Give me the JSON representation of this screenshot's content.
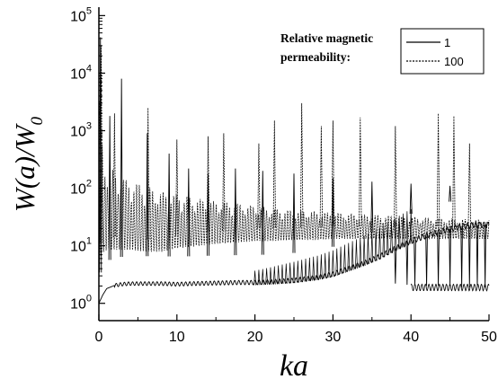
{
  "chart_data": {
    "type": "line",
    "xlabel": "ka",
    "ylabel": "W(a)/W",
    "ylabel_subscript": "0",
    "xlim": [
      0,
      50
    ],
    "ylim": [
      0.5,
      140000
    ],
    "yscale": "log",
    "grid": false,
    "legend_placement": "top-right",
    "legend_title_line1": "Relative magnetic",
    "legend_title_line2": "permeability:",
    "x_ticks": [
      "0",
      "10",
      "20",
      "30",
      "40",
      "50"
    ],
    "y_ticks": [
      {
        "base": "10",
        "exp": "0",
        "value": 1
      },
      {
        "base": "10",
        "exp": "1",
        "value": 10
      },
      {
        "base": "10",
        "exp": "2",
        "value": 100
      },
      {
        "base": "10",
        "exp": "3",
        "value": 1000
      },
      {
        "base": "10",
        "exp": "4",
        "value": 10000
      },
      {
        "base": "10",
        "exp": "5",
        "value": 100000
      }
    ],
    "series": [
      {
        "name": "1",
        "style": "solid",
        "color": "#000000",
        "x": [
          0,
          0.5,
          1,
          2,
          3,
          4,
          6,
          8,
          10,
          12,
          15,
          18,
          20,
          22,
          25,
          28,
          30,
          32,
          34,
          36,
          38,
          40,
          42,
          44,
          46,
          48,
          50
        ],
        "y": [
          1.0,
          1.4,
          1.8,
          2.05,
          2.15,
          2.2,
          2.2,
          2.2,
          2.15,
          2.2,
          2.25,
          2.3,
          2.3,
          2.35,
          2.5,
          2.8,
          3.2,
          4.0,
          5.0,
          6.5,
          9.0,
          12.0,
          15.0,
          18.0,
          21.0,
          23.0,
          23.0
        ],
        "peaks": [
          {
            "x": 0.2,
            "y": 42000
          },
          {
            "x": 1.4,
            "y": 1800
          },
          {
            "x": 2.9,
            "y": 8000
          },
          {
            "x": 6.2,
            "y": 900
          },
          {
            "x": 9.0,
            "y": 400
          },
          {
            "x": 11.5,
            "y": 220
          },
          {
            "x": 14.0,
            "y": 180
          },
          {
            "x": 17.5,
            "y": 220
          },
          {
            "x": 21.0,
            "y": 200
          },
          {
            "x": 25.0,
            "y": 180
          },
          {
            "x": 30.0,
            "y": 150
          },
          {
            "x": 35.0,
            "y": 130
          },
          {
            "x": 40.0,
            "y": 120
          },
          {
            "x": 45.0,
            "y": 110
          }
        ],
        "drops": [
          {
            "x": 38.0,
            "y": 2.2
          },
          {
            "x": 39.5,
            "y": 2.1
          },
          {
            "x": 40.5,
            "y": 2.1
          },
          {
            "x": 42.0,
            "y": 2.0
          },
          {
            "x": 43.5,
            "y": 2.0
          },
          {
            "x": 45.0,
            "y": 2.0
          },
          {
            "x": 46.5,
            "y": 1.9
          },
          {
            "x": 47.5,
            "y": 1.9
          },
          {
            "x": 48.5,
            "y": 1.9
          },
          {
            "x": 49.5,
            "y": 1.9
          }
        ]
      },
      {
        "name": "100",
        "style": "dashed",
        "color": "#000000",
        "x": [
          0,
          0.5,
          1,
          2,
          3,
          4,
          6,
          8,
          10,
          12,
          15,
          18,
          20,
          22,
          25,
          28,
          30,
          35,
          40,
          45,
          50
        ],
        "y": [
          10,
          12,
          14,
          14,
          14,
          14,
          13,
          13,
          15,
          16,
          18,
          19,
          20,
          20,
          21,
          21,
          22,
          22,
          22,
          22,
          22
        ],
        "upper": [
          5000,
          500,
          250,
          200,
          160,
          140,
          110,
          90,
          80,
          70,
          60,
          55,
          50,
          45,
          42,
          40,
          38,
          35,
          32,
          30,
          28
        ],
        "peaks": [
          {
            "x": 0.3,
            "y": 30000
          },
          {
            "x": 2.0,
            "y": 2000
          },
          {
            "x": 6.3,
            "y": 2500
          },
          {
            "x": 10.0,
            "y": 700
          },
          {
            "x": 14.0,
            "y": 800
          },
          {
            "x": 16.0,
            "y": 900
          },
          {
            "x": 20.5,
            "y": 600
          },
          {
            "x": 22.5,
            "y": 1500
          },
          {
            "x": 26.0,
            "y": 3000
          },
          {
            "x": 28.5,
            "y": 1200
          },
          {
            "x": 30.0,
            "y": 1500
          },
          {
            "x": 33.5,
            "y": 1700
          },
          {
            "x": 38.0,
            "y": 1200
          },
          {
            "x": 43.5,
            "y": 2000
          },
          {
            "x": 45.5,
            "y": 1800
          },
          {
            "x": 47.5,
            "y": 600
          }
        ]
      }
    ]
  }
}
